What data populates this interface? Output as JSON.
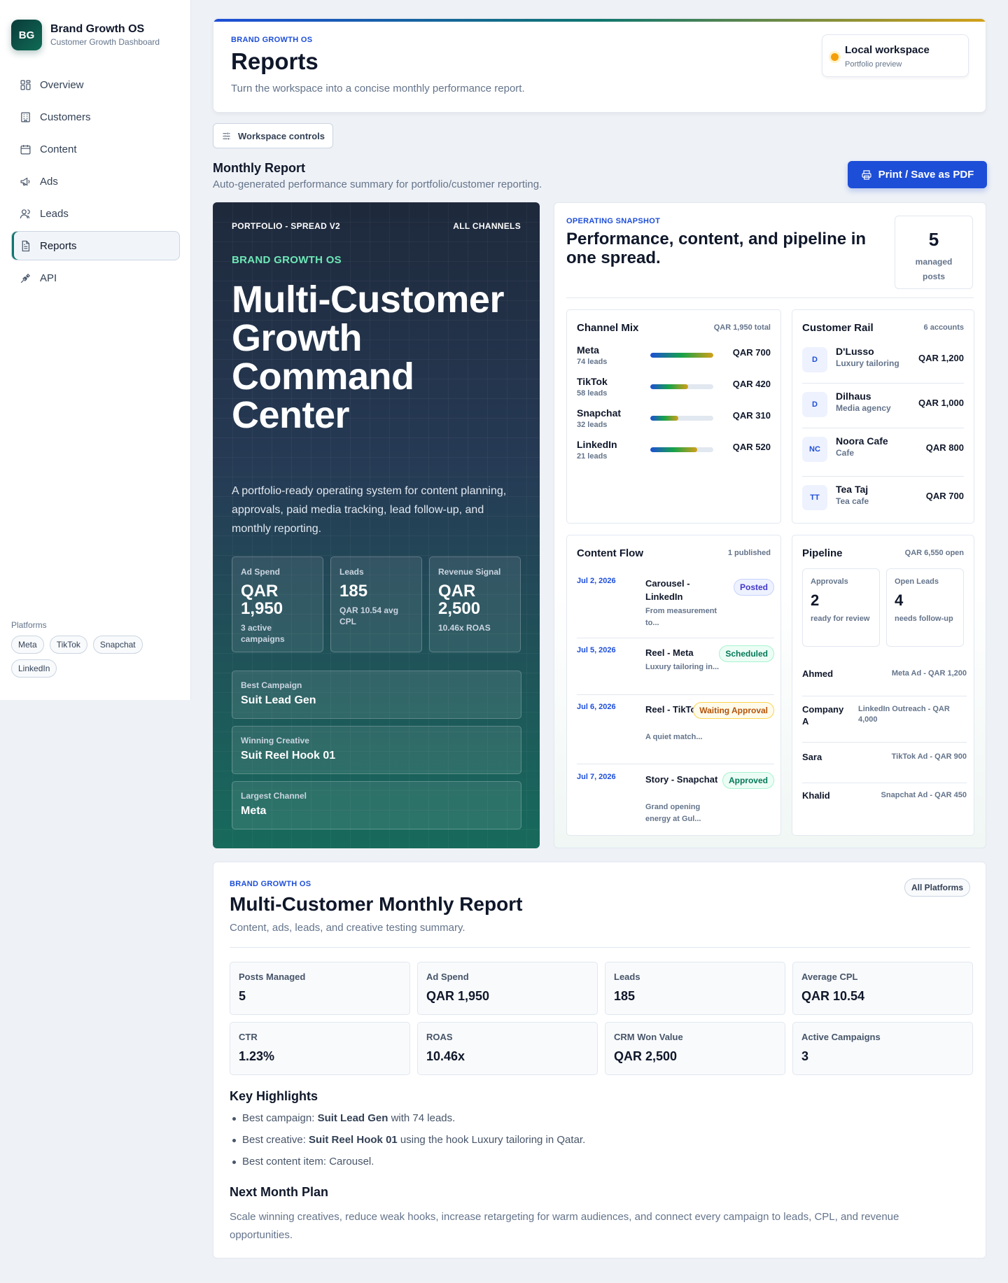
{
  "sidebar": {
    "logo": "BG",
    "brand_title": "Brand Growth OS",
    "brand_sub": "Customer Growth Dashboard",
    "nav": [
      "Overview",
      "Customers",
      "Content",
      "Ads",
      "Leads",
      "Reports",
      "API"
    ],
    "platforms_label": "Platforms",
    "platforms": [
      "Meta",
      "TikTok",
      "Snapchat",
      "LinkedIn"
    ]
  },
  "header": {
    "eyebrow": "BRAND GROWTH OS",
    "title": "Reports",
    "desc": "Turn the workspace into a concise monthly performance report.",
    "workspace_title": "Local workspace",
    "workspace_sub": "Portfolio preview"
  },
  "controls": {
    "workspace_controls": "Workspace controls",
    "section_title": "Monthly Report",
    "section_sub": "Auto-generated performance summary for portfolio/customer reporting.",
    "print_label": "Print / Save as PDF"
  },
  "hero": {
    "top_left": "PORTFOLIO - SPREAD V2",
    "top_right": "ALL CHANNELS",
    "brand": "BRAND GROWTH OS",
    "title": "Multi-Customer Growth Command Center",
    "desc": "A portfolio-ready operating system for content planning, approvals, paid media tracking, lead follow-up, and monthly reporting.",
    "stats": [
      {
        "label": "Ad Spend",
        "value": "QAR 1,950",
        "sub": "3 active campaigns"
      },
      {
        "label": "Leads",
        "value": "185",
        "sub": "QAR 10.54 avg CPL"
      },
      {
        "label": "Revenue Signal",
        "value": "QAR 2,500",
        "sub": "10.46x ROAS"
      }
    ],
    "boxes": [
      {
        "label": "Best Campaign",
        "value": "Suit Lead Gen"
      },
      {
        "label": "Winning Creative",
        "value": "Suit Reel Hook 01"
      },
      {
        "label": "Largest Channel",
        "value": "Meta"
      }
    ]
  },
  "snapshot": {
    "eyebrow": "OPERATING SNAPSHOT",
    "title": "Performance, content, and pipeline in one spread.",
    "count": "5",
    "count_label": "managed posts",
    "channel_mix": {
      "title": "Channel Mix",
      "meta": "QAR 1,950 total",
      "rows": [
        {
          "name": "Meta",
          "leads": "74 leads",
          "value": "QAR 700",
          "fill": 1.0
        },
        {
          "name": "TikTok",
          "leads": "58 leads",
          "value": "QAR 420",
          "fill": 0.6
        },
        {
          "name": "Snapchat",
          "leads": "32 leads",
          "value": "QAR 310",
          "fill": 0.44
        },
        {
          "name": "LinkedIn",
          "leads": "21 leads",
          "value": "QAR 520",
          "fill": 0.74
        }
      ]
    },
    "customer_rail": {
      "title": "Customer Rail",
      "meta": "6 accounts",
      "rows": [
        {
          "initials": "D",
          "name": "D'Lusso",
          "type": "Luxury tailoring",
          "value": "QAR 1,200"
        },
        {
          "initials": "D",
          "name": "Dilhaus",
          "type": "Media agency",
          "value": "QAR 1,000"
        },
        {
          "initials": "NC",
          "name": "Noora Cafe",
          "type": "Cafe",
          "value": "QAR 800"
        },
        {
          "initials": "TT",
          "name": "Tea Taj",
          "type": "Tea cafe",
          "value": "QAR 700"
        }
      ]
    },
    "content_flow": {
      "title": "Content Flow",
      "meta": "1 published",
      "rows": [
        {
          "date": "Jul 2, 2026",
          "title": "Carousel - LinkedIn",
          "desc": "From measurement to...",
          "status": "Posted"
        },
        {
          "date": "Jul 5, 2026",
          "title": "Reel - Meta",
          "desc": "Luxury tailoring in...",
          "status": "Scheduled"
        },
        {
          "date": "Jul 6, 2026",
          "title": "Reel - TikTok",
          "desc": "A quiet match...",
          "status": "Waiting Approval"
        },
        {
          "date": "Jul 7, 2026",
          "title": "Story - Snapchat",
          "desc": "Grand opening energy at Gul...",
          "status": "Approved"
        }
      ]
    },
    "pipeline": {
      "title": "Pipeline",
      "meta": "QAR 6,550 open",
      "approvals": {
        "label": "Approvals",
        "value": "2",
        "sub": "ready for review"
      },
      "open_leads": {
        "label": "Open Leads",
        "value": "4",
        "sub": "needs follow-up"
      },
      "rows": [
        {
          "name": "Ahmed",
          "deal": "Meta Ad - QAR 1,200"
        },
        {
          "name": "Company A",
          "deal": "LinkedIn Outreach - QAR 4,000"
        },
        {
          "name": "Sara",
          "deal": "TikTok Ad - QAR 900"
        },
        {
          "name": "Khalid",
          "deal": "Snapchat Ad - QAR 450"
        }
      ]
    }
  },
  "report": {
    "eyebrow": "BRAND GROWTH OS",
    "title": "Multi-Customer Monthly Report",
    "sub": "Content, ads, leads, and creative testing summary.",
    "chip": "All Platforms",
    "metrics": [
      {
        "label": "Posts Managed",
        "value": "5"
      },
      {
        "label": "Ad Spend",
        "value": "QAR 1,950"
      },
      {
        "label": "Leads",
        "value": "185"
      },
      {
        "label": "Average CPL",
        "value": "QAR 10.54"
      },
      {
        "label": "CTR",
        "value": "1.23%"
      },
      {
        "label": "ROAS",
        "value": "10.46x"
      },
      {
        "label": "CRM Won Value",
        "value": "QAR 2,500"
      },
      {
        "label": "Active Campaigns",
        "value": "3"
      }
    ],
    "highlights_title": "Key Highlights",
    "highlights": [
      {
        "pre": "Best campaign: ",
        "strong": "Suit Lead Gen",
        "post": " with 74 leads."
      },
      {
        "pre": "Best creative: ",
        "strong": "Suit Reel Hook 01",
        "post": " using the hook Luxury tailoring in Qatar."
      },
      {
        "pre": "Best content item: Carousel.",
        "strong": "",
        "post": ""
      }
    ],
    "plan_title": "Next Month Plan",
    "plan_desc": "Scale winning creatives, reduce weak hooks, increase retargeting for warm audiences, and connect every campaign to leads, CPL, and revenue opportunities."
  }
}
